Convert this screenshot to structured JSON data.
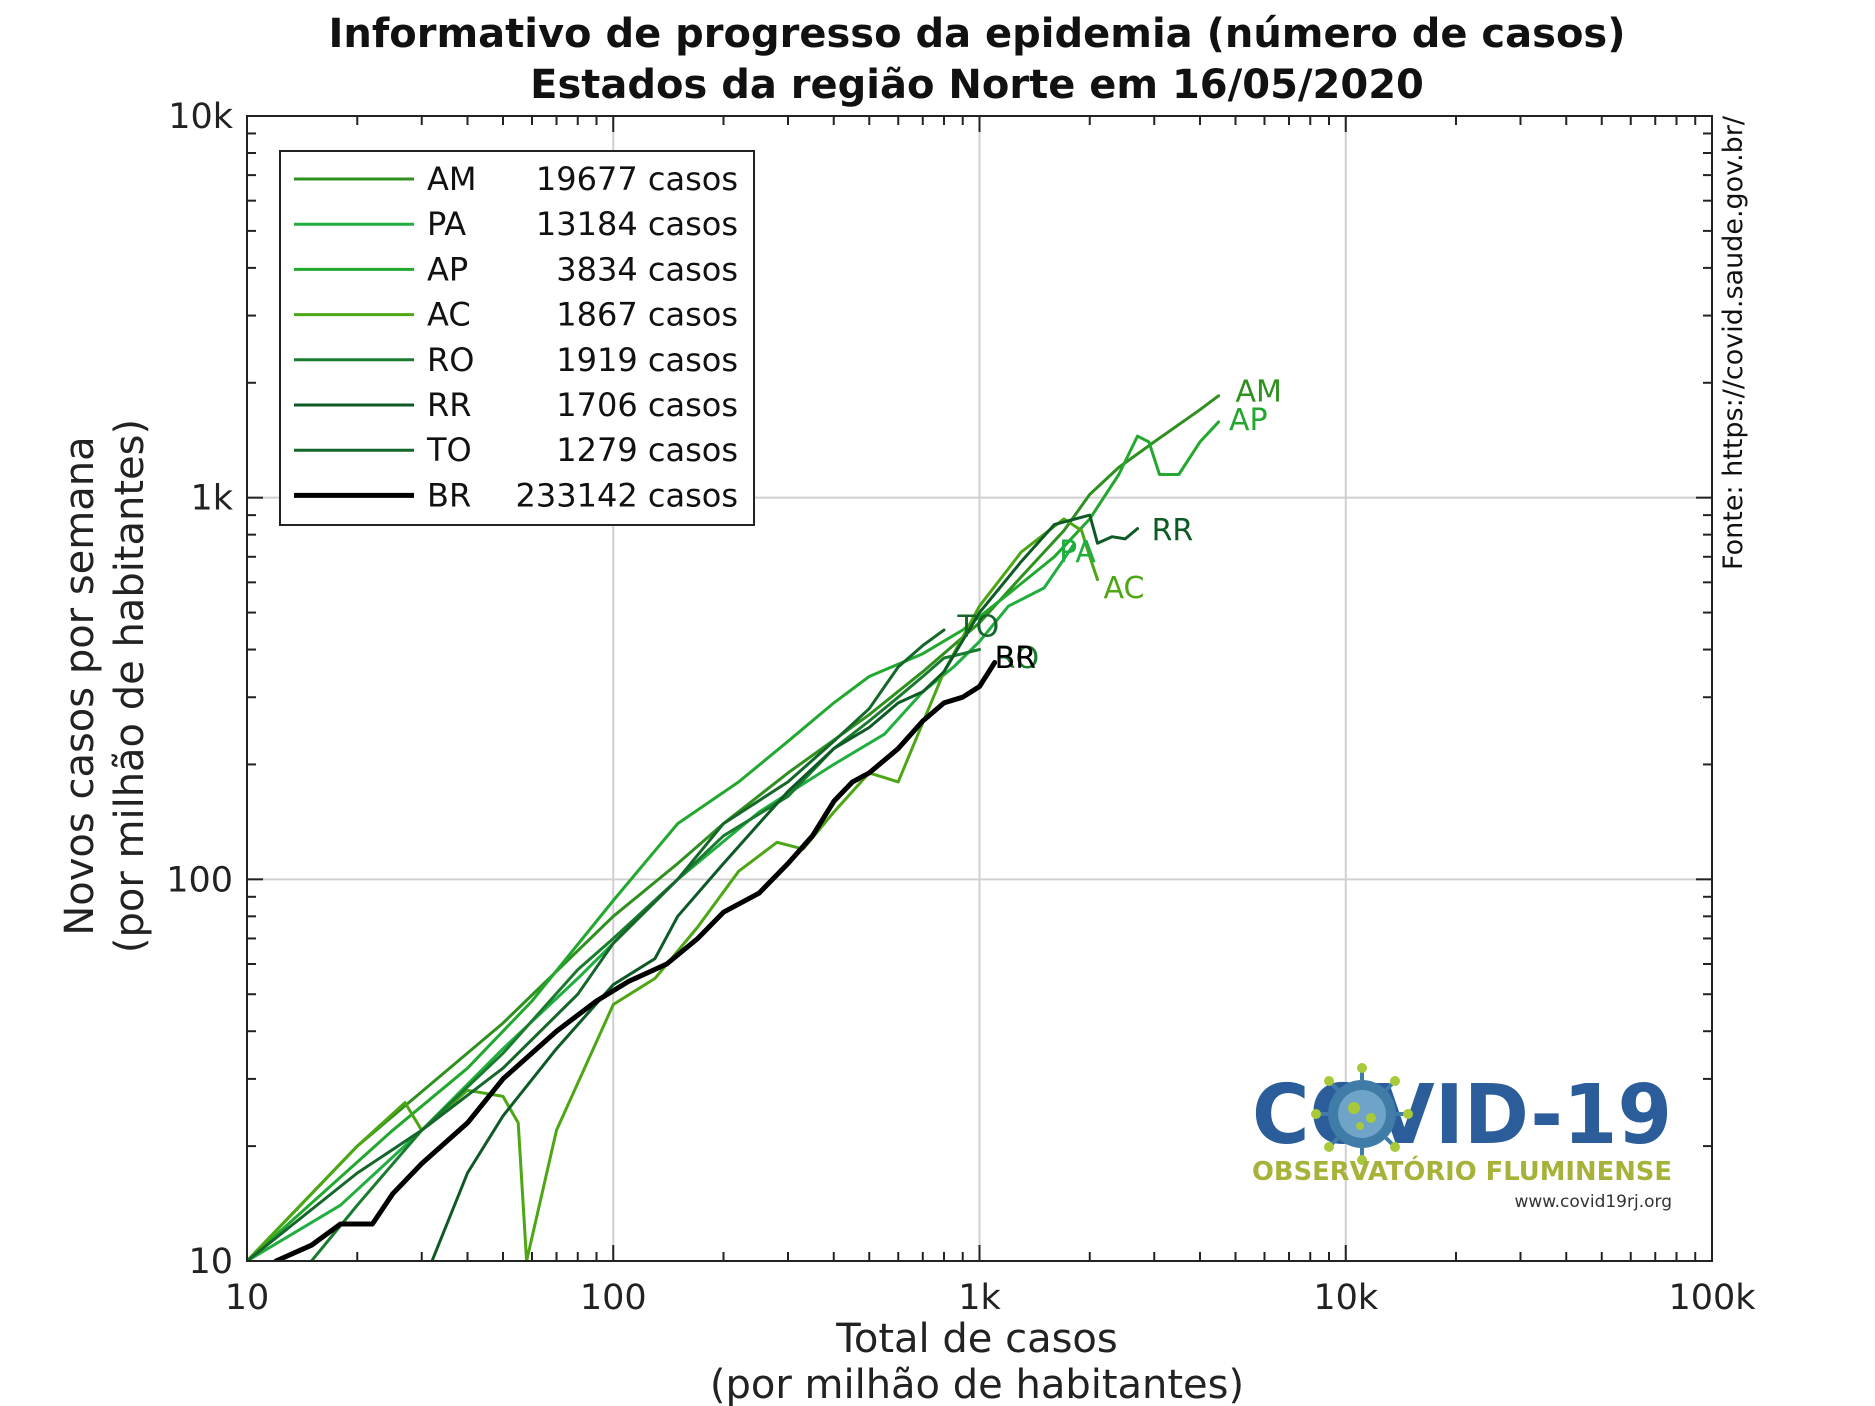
{
  "chart_data": {
    "type": "line",
    "title": "Informativo de progresso da epidemia (número de casos)",
    "subtitle": "Estados da região Norte em 16/05/2020",
    "xlabel": [
      "Total de casos",
      "(por milhão de habitantes)"
    ],
    "ylabel": [
      "Novos casos por semana",
      "(por milhão de habitantes)"
    ],
    "xscale": "log",
    "yscale": "log",
    "xlim": [
      10,
      100000
    ],
    "ylim": [
      10,
      10000
    ],
    "x_ticks": [
      {
        "value": 10,
        "label": "10"
      },
      {
        "value": 100,
        "label": "100"
      },
      {
        "value": 1000,
        "label": "1k"
      },
      {
        "value": 10000,
        "label": "10k"
      },
      {
        "value": 100000,
        "label": "100k"
      }
    ],
    "y_ticks": [
      {
        "value": 10,
        "label": "10"
      },
      {
        "value": 100,
        "label": "100"
      },
      {
        "value": 1000,
        "label": "1k"
      },
      {
        "value": 10000,
        "label": "10k"
      }
    ],
    "grid": true,
    "legend_position": "top-left",
    "source": "Fonte: https://covid.saude.gov.br/",
    "series": [
      {
        "name": "AM",
        "cases_label": "19677 casos",
        "color": "#2f8f1f",
        "width": 3,
        "points": [
          [
            10,
            10
          ],
          [
            20,
            20
          ],
          [
            50,
            42
          ],
          [
            100,
            80
          ],
          [
            150,
            110
          ],
          [
            200,
            140
          ],
          [
            300,
            190
          ],
          [
            500,
            270
          ],
          [
            700,
            350
          ],
          [
            1000,
            470
          ],
          [
            1300,
            620
          ],
          [
            1700,
            820
          ],
          [
            2000,
            1020
          ],
          [
            2400,
            1200
          ],
          [
            3000,
            1400
          ],
          [
            4000,
            1700
          ],
          [
            4500,
            1850
          ]
        ]
      },
      {
        "name": "PA",
        "cases_label": "13184 casos",
        "color": "#1fae3f",
        "width": 3,
        "points": [
          [
            10,
            10
          ],
          [
            18,
            14
          ],
          [
            30,
            22
          ],
          [
            50,
            36
          ],
          [
            80,
            55
          ],
          [
            150,
            100
          ],
          [
            250,
            150
          ],
          [
            400,
            200
          ],
          [
            550,
            240
          ],
          [
            700,
            310
          ],
          [
            850,
            360
          ],
          [
            1000,
            420
          ],
          [
            1200,
            520
          ],
          [
            1500,
            580
          ],
          [
            1700,
            690
          ],
          [
            1800,
            750
          ]
        ]
      },
      {
        "name": "AP",
        "cases_label": "3834 casos",
        "color": "#22a82e",
        "width": 3,
        "points": [
          [
            10,
            10
          ],
          [
            25,
            22
          ],
          [
            40,
            32
          ],
          [
            60,
            48
          ],
          [
            100,
            88
          ],
          [
            150,
            140
          ],
          [
            220,
            180
          ],
          [
            300,
            230
          ],
          [
            400,
            290
          ],
          [
            500,
            340
          ],
          [
            700,
            390
          ],
          [
            900,
            450
          ],
          [
            1200,
            560
          ],
          [
            1600,
            700
          ],
          [
            2000,
            880
          ],
          [
            2400,
            1150
          ],
          [
            2700,
            1450
          ],
          [
            2900,
            1400
          ],
          [
            3100,
            1150
          ],
          [
            3500,
            1150
          ],
          [
            4000,
            1400
          ],
          [
            4500,
            1580
          ]
        ]
      },
      {
        "name": "AC",
        "cases_label": "1867 casos",
        "color": "#4da614",
        "width": 3,
        "points": [
          [
            10,
            10
          ],
          [
            15,
            15
          ],
          [
            20,
            20
          ],
          [
            27,
            26
          ],
          [
            30,
            22
          ],
          [
            40,
            28
          ],
          [
            50,
            27
          ],
          [
            55,
            23
          ],
          [
            58,
            10
          ],
          [
            70,
            22
          ],
          [
            100,
            47
          ],
          [
            130,
            55
          ],
          [
            170,
            75
          ],
          [
            220,
            105
          ],
          [
            280,
            125
          ],
          [
            330,
            120
          ],
          [
            400,
            150
          ],
          [
            500,
            190
          ],
          [
            600,
            180
          ],
          [
            800,
            350
          ],
          [
            1000,
            520
          ],
          [
            1300,
            720
          ],
          [
            1700,
            880
          ],
          [
            1900,
            820
          ],
          [
            2000,
            700
          ],
          [
            2100,
            610
          ]
        ]
      },
      {
        "name": "RO",
        "cases_label": "1919 casos",
        "color": "#1a7a2e",
        "width": 3,
        "points": [
          [
            15,
            10
          ],
          [
            20,
            14
          ],
          [
            30,
            22
          ],
          [
            50,
            35
          ],
          [
            80,
            58
          ],
          [
            100,
            70
          ],
          [
            150,
            100
          ],
          [
            200,
            130
          ],
          [
            300,
            165
          ],
          [
            400,
            220
          ],
          [
            500,
            260
          ],
          [
            600,
            300
          ],
          [
            700,
            340
          ],
          [
            800,
            380
          ],
          [
            900,
            390
          ],
          [
            1000,
            400
          ]
        ]
      },
      {
        "name": "RR",
        "cases_label": "1706 casos",
        "color": "#0d5a26",
        "width": 3,
        "points": [
          [
            32,
            10
          ],
          [
            40,
            17
          ],
          [
            50,
            24
          ],
          [
            70,
            36
          ],
          [
            100,
            53
          ],
          [
            130,
            62
          ],
          [
            150,
            80
          ],
          [
            200,
            110
          ],
          [
            250,
            140
          ],
          [
            300,
            170
          ],
          [
            400,
            220
          ],
          [
            500,
            250
          ],
          [
            600,
            290
          ],
          [
            700,
            310
          ],
          [
            800,
            350
          ],
          [
            1000,
            500
          ],
          [
            1300,
            680
          ],
          [
            1600,
            850
          ],
          [
            2000,
            900
          ],
          [
            2100,
            760
          ],
          [
            2300,
            790
          ],
          [
            2500,
            780
          ],
          [
            2700,
            830
          ]
        ]
      },
      {
        "name": "TO",
        "cases_label": "1279 casos",
        "color": "#15662a",
        "width": 3,
        "points": [
          [
            10,
            10
          ],
          [
            20,
            17
          ],
          [
            30,
            22
          ],
          [
            50,
            32
          ],
          [
            80,
            50
          ],
          [
            100,
            68
          ],
          [
            150,
            100
          ],
          [
            200,
            140
          ],
          [
            300,
            180
          ],
          [
            400,
            230
          ],
          [
            500,
            280
          ],
          [
            600,
            360
          ],
          [
            700,
            410
          ],
          [
            800,
            450
          ]
        ]
      },
      {
        "name": "BR",
        "cases_label": "233142 casos",
        "color": "#000000",
        "width": 5,
        "points": [
          [
            12,
            10
          ],
          [
            15,
            11
          ],
          [
            18,
            12.5
          ],
          [
            22,
            12.5
          ],
          [
            25,
            15
          ],
          [
            30,
            18
          ],
          [
            40,
            23
          ],
          [
            50,
            30
          ],
          [
            70,
            40
          ],
          [
            90,
            48
          ],
          [
            110,
            54
          ],
          [
            140,
            60
          ],
          [
            170,
            70
          ],
          [
            200,
            82
          ],
          [
            250,
            92
          ],
          [
            300,
            110
          ],
          [
            350,
            130
          ],
          [
            400,
            160
          ],
          [
            450,
            180
          ],
          [
            500,
            190
          ],
          [
            600,
            220
          ],
          [
            700,
            260
          ],
          [
            800,
            290
          ],
          [
            900,
            300
          ],
          [
            1000,
            320
          ],
          [
            1100,
            370
          ]
        ]
      }
    ],
    "end_labels": [
      {
        "series": "AM",
        "text": "AM",
        "x": 5000,
        "y": 1900,
        "color": "#2f8f1f"
      },
      {
        "series": "AP",
        "text": "AP",
        "x": 4800,
        "y": 1600,
        "color": "#22a82e"
      },
      {
        "series": "RR",
        "text": "RR",
        "x": 2950,
        "y": 820,
        "color": "#0d5a26"
      },
      {
        "series": "PA",
        "text": "PA",
        "x": 1650,
        "y": 720,
        "color": "#1fae3f"
      },
      {
        "series": "AC",
        "text": "AC",
        "x": 2180,
        "y": 580,
        "color": "#4da614"
      },
      {
        "series": "TO",
        "text": "TO",
        "x": 870,
        "y": 460,
        "color": "#15662a"
      },
      {
        "series": "RO",
        "text": "RO",
        "x": 1100,
        "y": 380,
        "color": "#1a7a2e"
      },
      {
        "series": "BR",
        "text": "BR",
        "x": 1100,
        "y": 380,
        "color": "#000000"
      }
    ]
  },
  "logo": {
    "title": "COVID-19",
    "subtitle": "OBSERVATÓRIO FLUMINENSE",
    "url": "www.covid19rj.org",
    "title_color": "#2b5d9b",
    "subtitle_color": "#a7b23a",
    "icon": "coronavirus-icon"
  }
}
